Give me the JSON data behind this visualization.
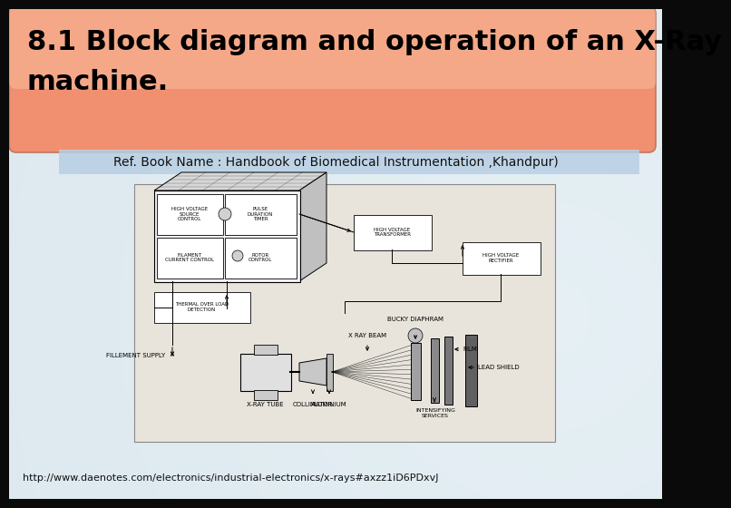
{
  "title_line1": "8.1 Block diagram and operation of an X-Ray",
  "title_line2": "machine.",
  "ref_text": "Ref. Book Name : Handbook of Biomedical Instrumentation ,Khandpur)",
  "url_text": "http://www.daenotes.com/electronics/industrial-electronics/x-rays#axzz1iD6PDxvJ",
  "title_box_color": "#f09070",
  "title_box_light": "#f8c0a0",
  "title_box_edge": "#c07858",
  "ref_bar_color": "#b8d0e4",
  "slide_bg_center": "#e8eff5",
  "slide_bg_edge": "#a8bcc8",
  "outer_bg": "#0a0a0a",
  "diagram_bg": "#e8e4dc",
  "title_fontsize": 22,
  "ref_fontsize": 10,
  "url_fontsize": 8,
  "title_color": "#000000",
  "ref_color": "#111111"
}
